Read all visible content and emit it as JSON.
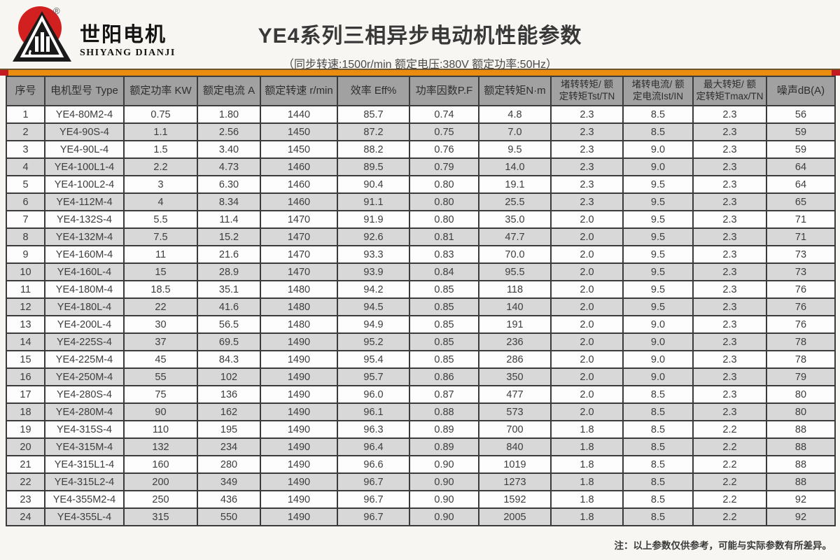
{
  "brand": {
    "name_cn": "世阳电机",
    "name_en": "SHIYANG DIANJI",
    "registered_mark": "®"
  },
  "header": {
    "title": "YE4系列三相异步电动机性能参数",
    "subtitle": "（同步转速:1500r/min   额定电压:380V   额定功率:50Hz）"
  },
  "table": {
    "columns": [
      "序号",
      "电机型号 Type",
      "额定功率 KW",
      "额定电流 A",
      "额定转速 r/min",
      "效率 Eff%",
      "功率因数P.F",
      "额定转矩N·m",
      "堵转转矩/ 额\n定转矩Tst/TN",
      "堵转电流/ 额\n定电流Ist/IN",
      "最大转矩/ 额\n定转矩Tmax/TN",
      "噪声dB(A)"
    ],
    "rows": [
      [
        "1",
        "YE4-80M2-4",
        "0.75",
        "1.80",
        "1440",
        "85.7",
        "0.74",
        "4.8",
        "2.3",
        "8.5",
        "2.3",
        "56"
      ],
      [
        "2",
        "YE4-90S-4",
        "1.1",
        "2.56",
        "1450",
        "87.2",
        "0.75",
        "7.0",
        "2.3",
        "8.5",
        "2.3",
        "59"
      ],
      [
        "3",
        "YE4-90L-4",
        "1.5",
        "3.40",
        "1450",
        "88.2",
        "0.76",
        "9.5",
        "2.3",
        "9.0",
        "2.3",
        "59"
      ],
      [
        "4",
        "YE4-100L1-4",
        "2.2",
        "4.73",
        "1460",
        "89.5",
        "0.79",
        "14.0",
        "2.3",
        "9.0",
        "2.3",
        "64"
      ],
      [
        "5",
        "YE4-100L2-4",
        "3",
        "6.30",
        "1460",
        "90.4",
        "0.80",
        "19.1",
        "2.3",
        "9.5",
        "2.3",
        "64"
      ],
      [
        "6",
        "YE4-112M-4",
        "4",
        "8.34",
        "1460",
        "91.1",
        "0.80",
        "25.5",
        "2.3",
        "9.5",
        "2.3",
        "65"
      ],
      [
        "7",
        "YE4-132S-4",
        "5.5",
        "11.4",
        "1470",
        "91.9",
        "0.80",
        "35.0",
        "2.0",
        "9.5",
        "2.3",
        "71"
      ],
      [
        "8",
        "YE4-132M-4",
        "7.5",
        "15.2",
        "1470",
        "92.6",
        "0.81",
        "47.7",
        "2.0",
        "9.5",
        "2.3",
        "71"
      ],
      [
        "9",
        "YE4-160M-4",
        "11",
        "21.6",
        "1470",
        "93.3",
        "0.83",
        "70.0",
        "2.0",
        "9.5",
        "2.3",
        "73"
      ],
      [
        "10",
        "YE4-160L-4",
        "15",
        "28.9",
        "1470",
        "93.9",
        "0.84",
        "95.5",
        "2.0",
        "9.5",
        "2.3",
        "73"
      ],
      [
        "11",
        "YE4-180M-4",
        "18.5",
        "35.1",
        "1480",
        "94.2",
        "0.85",
        "118",
        "2.0",
        "9.5",
        "2.3",
        "76"
      ],
      [
        "12",
        "YE4-180L-4",
        "22",
        "41.6",
        "1480",
        "94.5",
        "0.85",
        "140",
        "2.0",
        "9.5",
        "2.3",
        "76"
      ],
      [
        "13",
        "YE4-200L-4",
        "30",
        "56.5",
        "1480",
        "94.9",
        "0.85",
        "191",
        "2.0",
        "9.0",
        "2.3",
        "76"
      ],
      [
        "14",
        "YE4-225S-4",
        "37",
        "69.5",
        "1490",
        "95.2",
        "0.85",
        "236",
        "2.0",
        "9.0",
        "2.3",
        "78"
      ],
      [
        "15",
        "YE4-225M-4",
        "45",
        "84.3",
        "1490",
        "95.4",
        "0.85",
        "286",
        "2.0",
        "9.0",
        "2.3",
        "78"
      ],
      [
        "16",
        "YE4-250M-4",
        "55",
        "102",
        "1490",
        "95.7",
        "0.86",
        "350",
        "2.0",
        "9.0",
        "2.3",
        "79"
      ],
      [
        "17",
        "YE4-280S-4",
        "75",
        "136",
        "1490",
        "96.0",
        "0.87",
        "477",
        "2.0",
        "8.5",
        "2.3",
        "80"
      ],
      [
        "18",
        "YE4-280M-4",
        "90",
        "162",
        "1490",
        "96.1",
        "0.88",
        "573",
        "2.0",
        "8.5",
        "2.3",
        "80"
      ],
      [
        "19",
        "YE4-315S-4",
        "110",
        "195",
        "1490",
        "96.3",
        "0.89",
        "700",
        "1.8",
        "8.5",
        "2.2",
        "88"
      ],
      [
        "20",
        "YE4-315M-4",
        "132",
        "234",
        "1490",
        "96.4",
        "0.89",
        "840",
        "1.8",
        "8.5",
        "2.2",
        "88"
      ],
      [
        "21",
        "YE4-315L1-4",
        "160",
        "280",
        "1490",
        "96.6",
        "0.90",
        "1019",
        "1.8",
        "8.5",
        "2.2",
        "88"
      ],
      [
        "22",
        "YE4-315L2-4",
        "200",
        "349",
        "1490",
        "96.7",
        "0.90",
        "1273",
        "1.8",
        "8.5",
        "2.2",
        "88"
      ],
      [
        "23",
        "YE4-355M2-4",
        "250",
        "436",
        "1490",
        "96.7",
        "0.90",
        "1592",
        "1.8",
        "8.5",
        "2.2",
        "92"
      ],
      [
        "24",
        "YE4-355L-4",
        "315",
        "550",
        "1490",
        "96.7",
        "0.90",
        "2005",
        "1.8",
        "8.5",
        "2.2",
        "92"
      ]
    ]
  },
  "footnote": "注：以上参数仅供参考，可能与实际参数有所差异。",
  "colors": {
    "accent_orange": "#e98c10",
    "accent_red": "#c41a22",
    "logo_red": "#d21f1f",
    "logo_black": "#1a1a1a",
    "header_gray": "#a1a1a1",
    "row_alt_gray": "#d8d8d8",
    "border_dark": "#3b3b3b",
    "page_bg": "#f7f6f3"
  }
}
